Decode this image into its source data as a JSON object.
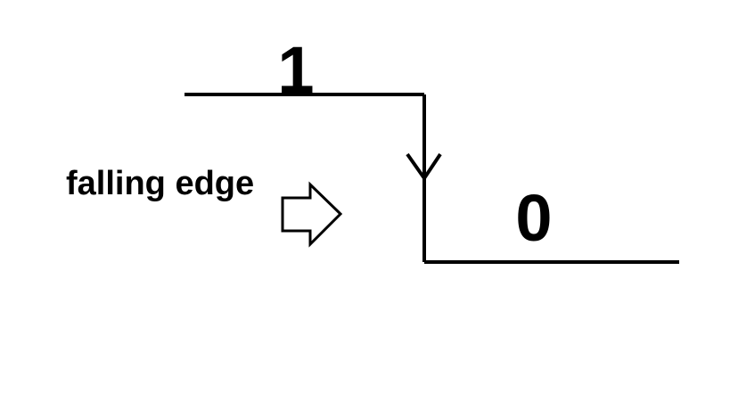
{
  "diagram": {
    "high_label": "1",
    "low_label": "0",
    "edge_label": "falling edge",
    "line_color": "#000000",
    "background_color": "#ffffff",
    "icons": {
      "edge_direction": "down-arrowhead-icon",
      "pointer": "right-arrow-icon"
    }
  }
}
